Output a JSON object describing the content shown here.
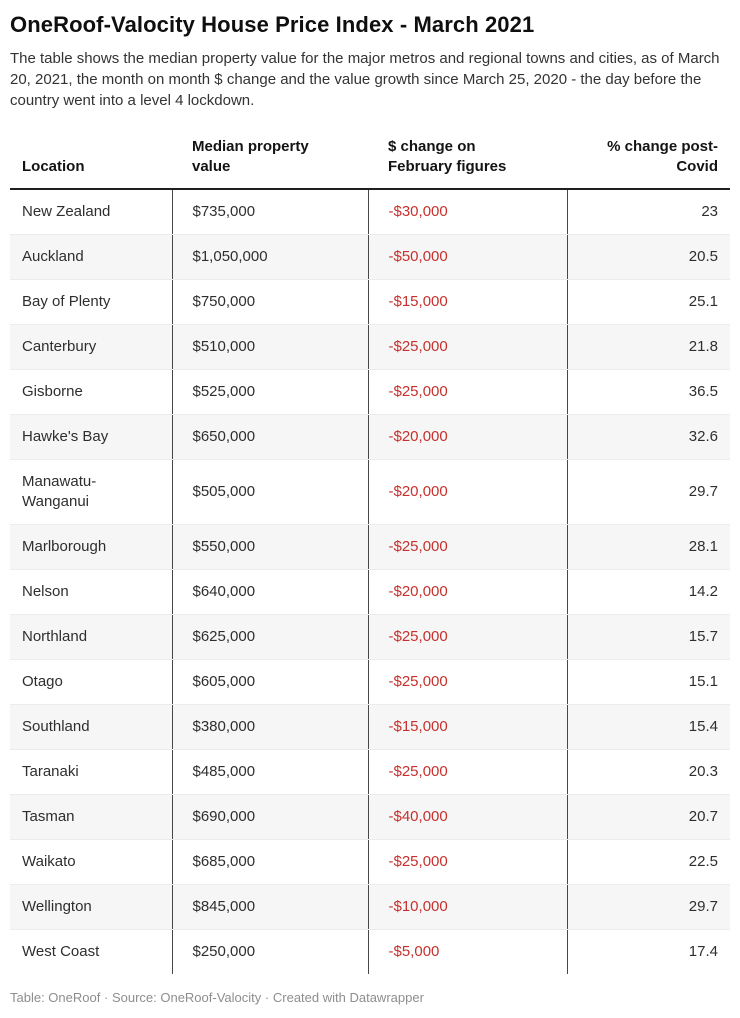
{
  "chart_data": {
    "type": "table",
    "title": "OneRoof-Valocity House Price Index - March 2021",
    "description": "The table shows the median property value for the major metros and regional towns and cities, as of March 20, 2021, the month on month $ change and the value growth since March 25, 2020 - the day before the country went into a level 4 lockdown.",
    "columns": [
      "Location",
      "Median property value",
      "$ change on February figures",
      "% change post-Covid"
    ],
    "rows": [
      [
        "New Zealand",
        "$735,000",
        "-$30,000",
        "23"
      ],
      [
        "Auckland",
        "$1,050,000",
        "-$50,000",
        "20.5"
      ],
      [
        "Bay of Plenty",
        "$750,000",
        "-$15,000",
        "25.1"
      ],
      [
        "Canterbury",
        "$510,000",
        "-$25,000",
        "21.8"
      ],
      [
        "Gisborne",
        "$525,000",
        "-$25,000",
        "36.5"
      ],
      [
        "Hawke's Bay",
        "$650,000",
        "-$20,000",
        "32.6"
      ],
      [
        "Manawatu-Wanganui",
        "$505,000",
        "-$20,000",
        "29.7"
      ],
      [
        "Marlborough",
        "$550,000",
        "-$25,000",
        "28.1"
      ],
      [
        "Nelson",
        "$640,000",
        "-$20,000",
        "14.2"
      ],
      [
        "Northland",
        "$625,000",
        "-$25,000",
        "15.7"
      ],
      [
        "Otago",
        "$605,000",
        "-$25,000",
        "15.1"
      ],
      [
        "Southland",
        "$380,000",
        "-$15,000",
        "15.4"
      ],
      [
        "Taranaki",
        "$485,000",
        "-$25,000",
        "20.3"
      ],
      [
        "Tasman",
        "$690,000",
        "-$40,000",
        "20.7"
      ],
      [
        "Waikato",
        "$685,000",
        "-$25,000",
        "22.5"
      ],
      [
        "Wellington",
        "$845,000",
        "-$10,000",
        "29.7"
      ],
      [
        "West Coast",
        "$250,000",
        "-$5,000",
        "17.4"
      ]
    ],
    "layout": {
      "zebra_striping": true,
      "stripe_color": "#f6f6f6",
      "negative_value_color": "#c5312d",
      "header_rule_color": "#1f1f1f",
      "column_divider_color": "#474747",
      "numeric_column_alignment": "right"
    }
  },
  "footer": {
    "table_credit": "Table: OneRoof",
    "source_credit": "Source: OneRoof-Valocity",
    "created_with": "Created with Datawrapper",
    "separator": "·"
  }
}
